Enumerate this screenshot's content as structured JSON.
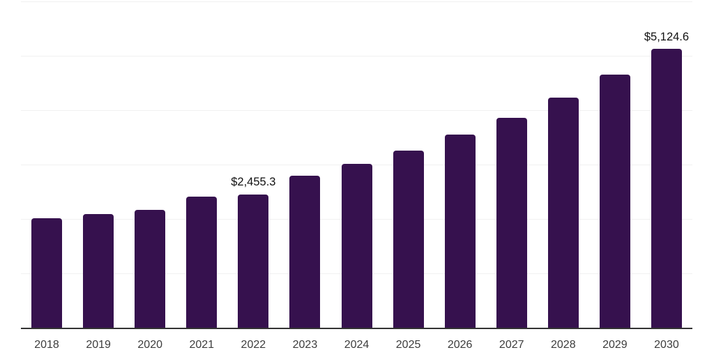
{
  "chart_data": {
    "type": "bar",
    "title": "",
    "xlabel": "",
    "ylabel": "",
    "categories": [
      "2018",
      "2019",
      "2020",
      "2021",
      "2022",
      "2023",
      "2024",
      "2025",
      "2026",
      "2027",
      "2028",
      "2029",
      "2030"
    ],
    "values": [
      2015,
      2090,
      2165,
      2410,
      2455.3,
      2795,
      3010,
      3255,
      3550,
      3855,
      4230,
      4650,
      5124.6
    ],
    "data_labels": [
      {
        "index": 4,
        "text": "$2,455.3"
      },
      {
        "index": 12,
        "text": "$5,124.6"
      }
    ],
    "ylim": [
      0,
      6000
    ],
    "gridline_values": [
      1000,
      2000,
      3000,
      4000,
      5000,
      6000
    ],
    "grid": "horizontal",
    "legend": "none",
    "y_axis_labels_visible": false,
    "colors": {
      "bar": "#36114e",
      "gridline": "#f1f1f1",
      "axis_line": "#333333",
      "tick_label": "#3d3d3d",
      "data_label": "#111111",
      "background": "#ffffff"
    }
  }
}
